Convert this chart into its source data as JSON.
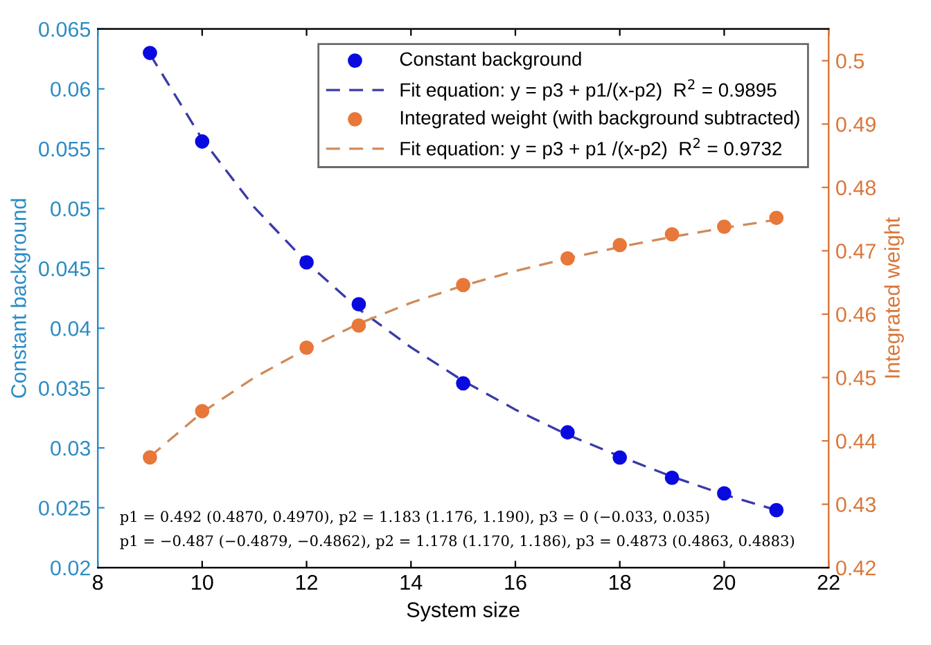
{
  "chart_data": {
    "type": "scatter",
    "xlabel": "System size",
    "ylabel": "Constant background",
    "y2label": "Integrated weight",
    "xlim": [
      8,
      22
    ],
    "xticks": [
      8,
      10,
      12,
      14,
      16,
      18,
      20,
      22
    ],
    "ylim": [
      0.02,
      0.065
    ],
    "yticks": [
      0.02,
      0.025,
      0.03,
      0.035,
      0.04,
      0.045,
      0.05,
      0.055,
      0.06,
      0.065
    ],
    "y2lim": [
      0.42,
      0.505
    ],
    "y2ticks": [
      0.42,
      0.43,
      0.44,
      0.45,
      0.46,
      0.47,
      0.48,
      0.49,
      0.5
    ],
    "grid": false,
    "legend": "top right",
    "series": [
      {
        "name": "Constant background",
        "marker": "circle",
        "color": "#0a0ae0",
        "x": [
          9,
          10,
          12,
          13,
          15,
          17,
          18,
          19,
          20,
          21
        ],
        "values": [
          0.063,
          0.0556,
          0.0455,
          0.042,
          0.0354,
          0.0313,
          0.0292,
          0.0275,
          0.0262,
          0.0248
        ]
      },
      {
        "name": "Fit equation: y = p3 + p1/(x-p2)  R$^{2}$ = 0.9895",
        "type": "line",
        "line_style": "dashed",
        "color": "#3a3aa8",
        "x": [
          9,
          10,
          11,
          12,
          13,
          14,
          15,
          16,
          17,
          18,
          19,
          20,
          21
        ],
        "values": [
          0.0629,
          0.0558,
          0.0501,
          0.0455,
          0.0416,
          0.0384,
          0.0356,
          0.0332,
          0.0311,
          0.0293,
          0.0276,
          0.0261,
          0.0248
        ]
      },
      {
        "name": "Integrated weight (with background subtracted)",
        "marker": "circle",
        "axis": "y2",
        "color": "#e8773a",
        "x": [
          9,
          10,
          12,
          13,
          15,
          17,
          18,
          19,
          20,
          21
        ],
        "values": [
          0.4374,
          0.4447,
          0.4547,
          0.4582,
          0.4646,
          0.4688,
          0.4709,
          0.4726,
          0.4738,
          0.4752
        ]
      },
      {
        "name": "Fit equation: y = p3 + p1 /(x-p2)  R$^{2}$ = 0.9732",
        "type": "line",
        "line_style": "dashed",
        "axis": "y2",
        "color": "#d08a5a",
        "x": [
          9,
          10,
          11,
          12,
          13,
          14,
          15,
          16,
          17,
          18,
          19,
          20,
          21
        ],
        "values": [
          0.4375,
          0.4445,
          0.45,
          0.4545,
          0.4585,
          0.4618,
          0.4645,
          0.4668,
          0.4688,
          0.4706,
          0.4722,
          0.4736,
          0.4749
        ]
      }
    ],
    "annotations": [
      "p1 = 0.492 (0.4870, 0.4970), p2 = 1.183 (1.176, 1.190), p3 = 0 (−0.033, 0.035)",
      "p1 = −0.487 (−0.4879, −0.4862), p2 = 1.178 (1.170, 1.186), p3 = 0.4873 (0.4863, 0.4883)"
    ]
  }
}
